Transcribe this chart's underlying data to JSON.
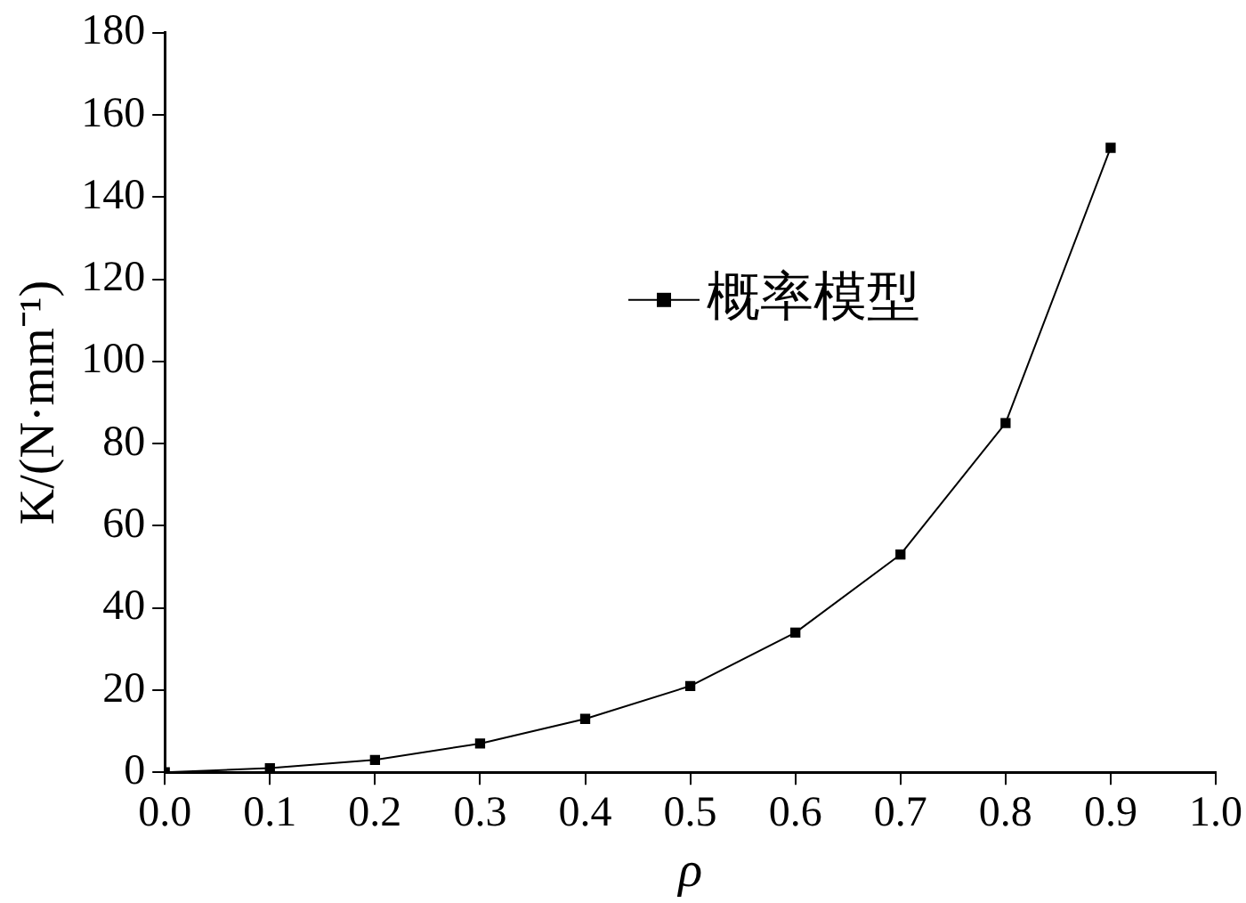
{
  "chart_data": {
    "type": "line",
    "xlabel": "ρ",
    "ylabel": "K/(N·mm⁻¹)",
    "x": [
      0.0,
      0.1,
      0.2,
      0.3,
      0.4,
      0.5,
      0.6,
      0.7,
      0.8,
      0.9
    ],
    "series": [
      {
        "name": "概率模型",
        "color": "#000000",
        "values": [
          0,
          1,
          3,
          7,
          13,
          21,
          34,
          53,
          85,
          152
        ]
      }
    ],
    "xlim": [
      0,
      1
    ],
    "xticks": [
      {
        "value": 0,
        "label": "0.0"
      },
      0.1,
      0.2,
      0.3,
      0.4,
      0.5,
      0.6,
      0.7,
      0.8,
      0.9,
      {
        "value": 1,
        "label": "1.0"
      }
    ],
    "ylim": [
      0,
      180
    ],
    "yticks": [
      0,
      20,
      40,
      60,
      80,
      100,
      120,
      140,
      160,
      180
    ],
    "grid": false,
    "legend": "top right",
    "marker": "square",
    "line_style": "solid"
  }
}
